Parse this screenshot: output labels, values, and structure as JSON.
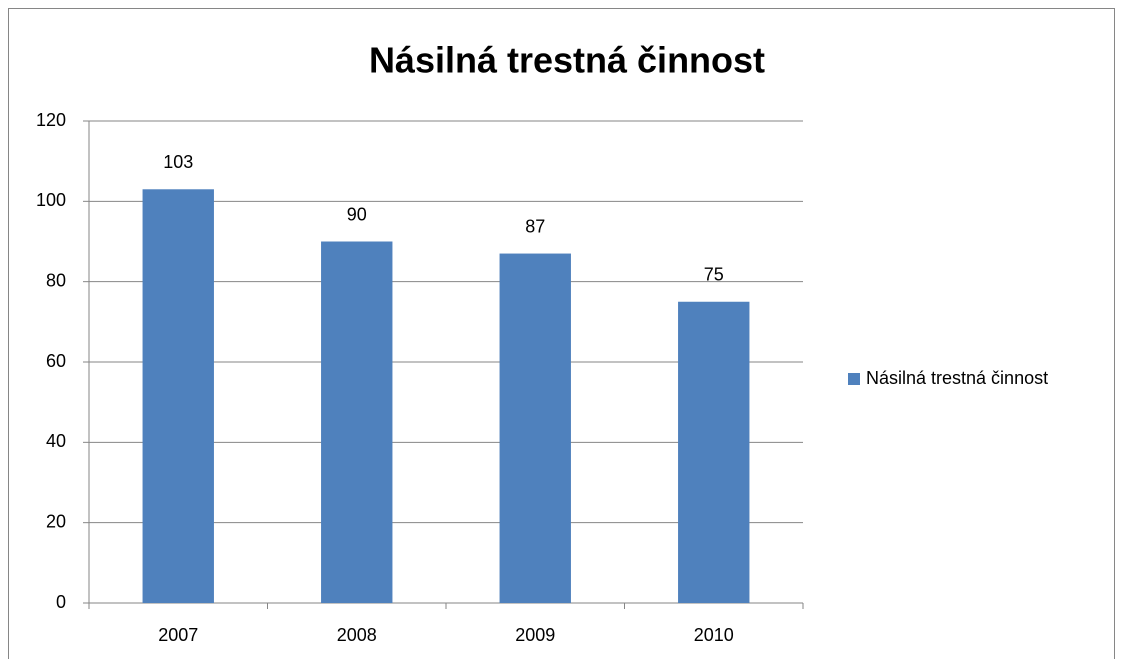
{
  "chart_data": {
    "type": "bar",
    "title": "Násilná trestná činnost",
    "categories": [
      "2007",
      "2008",
      "2009",
      "2010"
    ],
    "series": [
      {
        "name": "Násilná trestná činnost",
        "color": "#4f81bd",
        "values": [
          103,
          90,
          87,
          75
        ]
      }
    ],
    "ylim": [
      0,
      120
    ],
    "yticks": [
      0,
      20,
      40,
      60,
      80,
      100,
      120
    ],
    "grid": true,
    "legend": "right"
  }
}
